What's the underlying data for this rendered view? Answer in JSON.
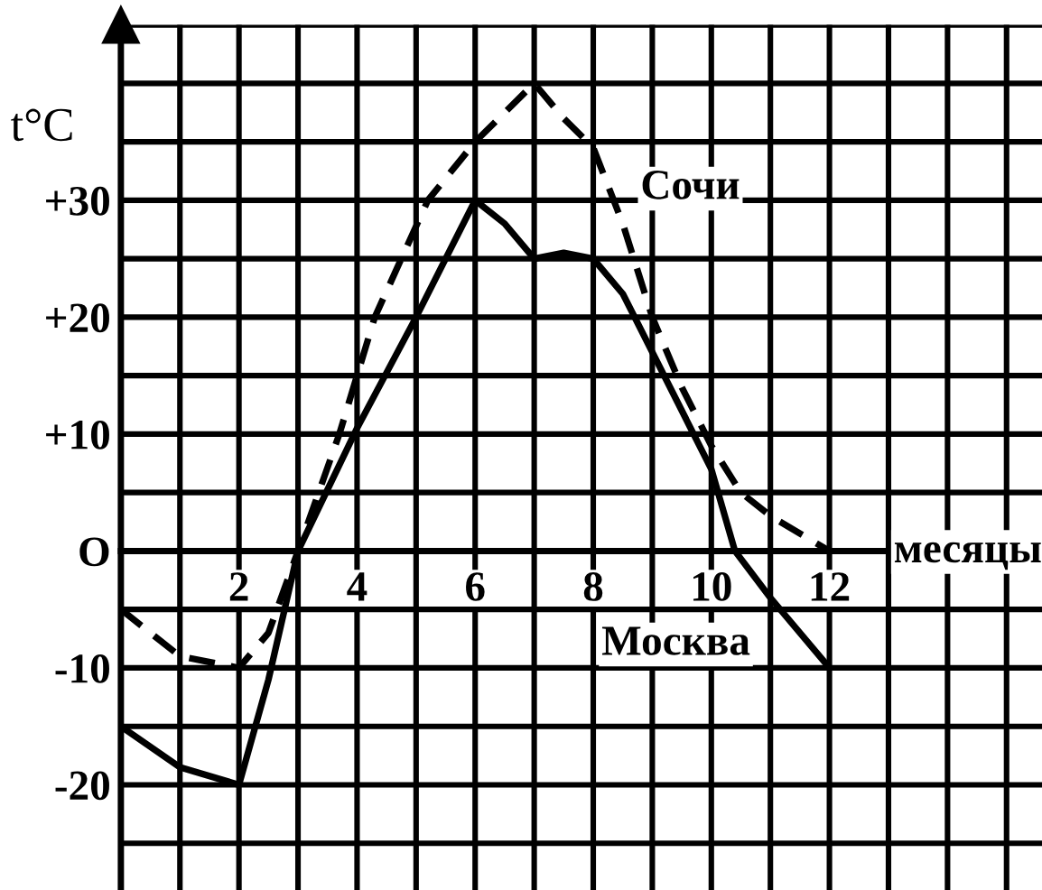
{
  "chart_data": {
    "type": "line",
    "xlabel": "месяцы",
    "ylabel": "t°C",
    "series": [
      {
        "name": "Москва",
        "color": "#000000",
        "line_style": "solid",
        "x": [
          0,
          1,
          2,
          2.5,
          3,
          4,
          5,
          6,
          6.5,
          7,
          7.5,
          8,
          8.5,
          9,
          10,
          10.4,
          11,
          12
        ],
        "values": [
          -15,
          -18.5,
          -20,
          -11,
          0,
          10.5,
          20,
          30,
          28,
          25,
          25.5,
          25,
          22,
          17,
          7,
          0,
          -4,
          -10
        ]
      },
      {
        "name": "Сочи",
        "color": "#000000",
        "line_style": "dashed",
        "x": [
          0,
          1,
          2,
          2.5,
          3,
          3.7,
          4.3,
          5.2,
          6,
          7,
          7.5,
          8,
          8.5,
          9,
          9.5,
          10,
          10.5,
          11,
          12
        ],
        "values": [
          -5,
          -9,
          -10,
          -7,
          0,
          10,
          20,
          30,
          35,
          40,
          37,
          34.5,
          28,
          20,
          14,
          9,
          5,
          3,
          0
        ]
      }
    ],
    "xlim": [
      0,
      15.6
    ],
    "ylim": [
      -29,
      45
    ],
    "xticks": [
      {
        "value": 0,
        "label": null
      },
      {
        "value": 1,
        "label": null
      },
      2,
      {
        "value": 3,
        "label": null
      },
      4,
      {
        "value": 5,
        "label": null
      },
      6,
      {
        "value": 7,
        "label": null
      },
      8,
      {
        "value": 9,
        "label": null
      },
      10,
      {
        "value": 11,
        "label": null
      },
      12,
      {
        "value": 13,
        "label": null
      },
      {
        "value": 14,
        "label": null
      },
      {
        "value": 15,
        "label": null
      }
    ],
    "yticks": [
      {
        "value": -25,
        "label": null
      },
      {
        "value": -20,
        "label": "-20"
      },
      {
        "value": -15,
        "label": null
      },
      {
        "value": -10,
        "label": "-10"
      },
      {
        "value": -5,
        "label": null
      },
      {
        "value": 0,
        "label": "O"
      },
      {
        "value": 5,
        "label": null
      },
      {
        "value": 10,
        "label": "+10"
      },
      {
        "value": 15,
        "label": null
      },
      {
        "value": 20,
        "label": "+20"
      },
      {
        "value": 25,
        "label": null
      },
      {
        "value": 30,
        "label": "+30"
      },
      {
        "value": 35,
        "label": null
      },
      {
        "value": 40,
        "label": null
      },
      {
        "value": 45,
        "label": null
      }
    ],
    "grid": true,
    "legend": false
  }
}
